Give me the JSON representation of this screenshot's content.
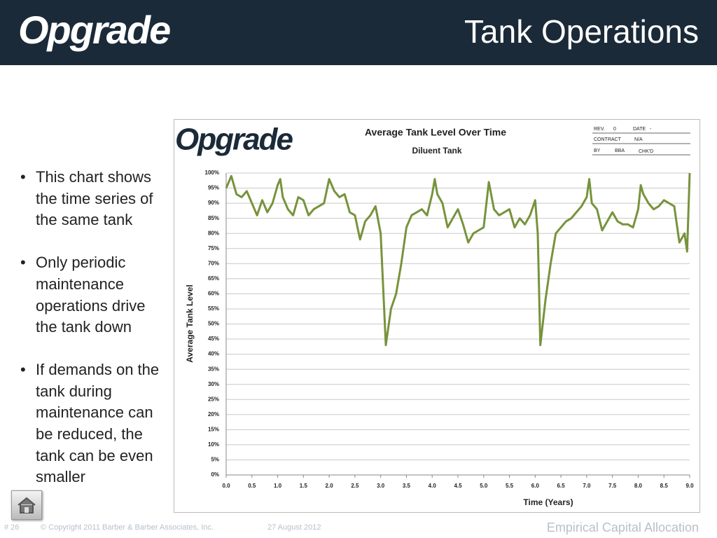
{
  "header": {
    "logo": "Opgrade",
    "title": "Tank Operations"
  },
  "bullets": [
    "This chart shows the time series of the same tank",
    "Only periodic maintenance operations drive the tank down",
    "If demands on the tank during maintenance can be reduced, the tank can be even smaller"
  ],
  "footer": {
    "slide_number": "# 26",
    "copyright": "© Copyright 2011 Barber & Barber Associates, Inc.",
    "date": "27 August 2012",
    "section": "Empirical Capital Allocation"
  },
  "chart_logo": "Opgrade",
  "title_block": {
    "rev_label": "REV.",
    "rev": "0",
    "date_label": "DATE",
    "date": "-",
    "contract_label": "CONTRACT",
    "contract": "N/A",
    "by_label": "BY",
    "by": "BBA",
    "chkd_label": "CHK'D"
  },
  "chart_data": {
    "type": "line",
    "title": "Average Tank Level Over Time",
    "subtitle": "Diluent Tank",
    "x_label": "Time (Years)",
    "y_label": "Average Tank Level",
    "grid": true,
    "xlim": [
      0,
      9
    ],
    "ylim": [
      0,
      100
    ],
    "xticks": [
      {
        "value": 0,
        "label": "0.0"
      },
      {
        "value": 0.5,
        "label": "0.5"
      },
      {
        "value": 1,
        "label": "1.0"
      },
      {
        "value": 1.5,
        "label": "1.5"
      },
      {
        "value": 2,
        "label": "2.0"
      },
      {
        "value": 2.5,
        "label": "2.5"
      },
      {
        "value": 3,
        "label": "3.0"
      },
      {
        "value": 3.5,
        "label": "3.5"
      },
      {
        "value": 4,
        "label": "4.0"
      },
      {
        "value": 4.5,
        "label": "4.5"
      },
      {
        "value": 5,
        "label": "5.0"
      },
      {
        "value": 5.5,
        "label": "5.5"
      },
      {
        "value": 6,
        "label": "6.0"
      },
      {
        "value": 6.5,
        "label": "6.5"
      },
      {
        "value": 7,
        "label": "7.0"
      },
      {
        "value": 7.5,
        "label": "7.5"
      },
      {
        "value": 8,
        "label": "8.0"
      },
      {
        "value": 8.5,
        "label": "8.5"
      },
      {
        "value": 9,
        "label": "9.0"
      }
    ],
    "yticks": [
      {
        "value": 0,
        "label": "0%"
      },
      {
        "value": 5,
        "label": "5%"
      },
      {
        "value": 10,
        "label": "10%"
      },
      {
        "value": 15,
        "label": "15%"
      },
      {
        "value": 20,
        "label": "20%"
      },
      {
        "value": 25,
        "label": "25%"
      },
      {
        "value": 30,
        "label": "30%"
      },
      {
        "value": 35,
        "label": "35%"
      },
      {
        "value": 40,
        "label": "40%"
      },
      {
        "value": 45,
        "label": "45%"
      },
      {
        "value": 50,
        "label": "50%"
      },
      {
        "value": 55,
        "label": "55%"
      },
      {
        "value": 60,
        "label": "60%"
      },
      {
        "value": 65,
        "label": "65%"
      },
      {
        "value": 70,
        "label": "70%"
      },
      {
        "value": 75,
        "label": "75%"
      },
      {
        "value": 80,
        "label": "80%"
      },
      {
        "value": 85,
        "label": "85%"
      },
      {
        "value": 90,
        "label": "90%"
      },
      {
        "value": 95,
        "label": "95%"
      },
      {
        "value": 100,
        "label": "100%"
      }
    ],
    "x": [
      0,
      0.1,
      0.2,
      0.3,
      0.4,
      0.5,
      0.6,
      0.7,
      0.8,
      0.9,
      1.0,
      1.05,
      1.1,
      1.2,
      1.3,
      1.4,
      1.5,
      1.6,
      1.7,
      1.8,
      1.9,
      2.0,
      2.1,
      2.2,
      2.3,
      2.4,
      2.5,
      2.6,
      2.7,
      2.8,
      2.9,
      3.0,
      3.1,
      3.2,
      3.3,
      3.4,
      3.5,
      3.6,
      3.7,
      3.8,
      3.9,
      4.0,
      4.05,
      4.1,
      4.2,
      4.3,
      4.4,
      4.5,
      4.6,
      4.7,
      4.8,
      4.9,
      5.0,
      5.1,
      5.2,
      5.3,
      5.4,
      5.5,
      5.6,
      5.7,
      5.8,
      5.9,
      6.0,
      6.05,
      6.1,
      6.2,
      6.3,
      6.4,
      6.5,
      6.6,
      6.7,
      6.8,
      6.9,
      7.0,
      7.05,
      7.1,
      7.2,
      7.3,
      7.4,
      7.5,
      7.6,
      7.7,
      7.8,
      7.9,
      8.0,
      8.05,
      8.1,
      8.2,
      8.3,
      8.4,
      8.5,
      8.6,
      8.7,
      8.8,
      8.9,
      8.95,
      9.0
    ],
    "series": [
      {
        "name": "Diluent Tank",
        "color": "#77933c",
        "values": [
          95,
          99,
          93,
          92,
          94,
          90,
          86,
          91,
          87,
          90,
          96,
          98,
          92,
          88,
          86,
          92,
          91,
          86,
          88,
          89,
          90,
          98,
          94,
          92,
          93,
          87,
          86,
          78,
          84,
          86,
          89,
          80,
          43,
          55,
          60,
          70,
          82,
          86,
          87,
          88,
          86,
          93,
          98,
          93,
          90,
          82,
          85,
          88,
          83,
          77,
          80,
          81,
          82,
          97,
          88,
          86,
          87,
          88,
          82,
          85,
          83,
          86,
          91,
          80,
          43,
          58,
          70,
          80,
          82,
          84,
          85,
          87,
          89,
          92,
          98,
          90,
          88,
          81,
          84,
          87,
          84,
          83,
          83,
          82,
          88,
          96,
          93,
          90,
          88,
          89,
          91,
          90,
          89,
          77,
          80,
          74,
          100
        ]
      }
    ]
  }
}
